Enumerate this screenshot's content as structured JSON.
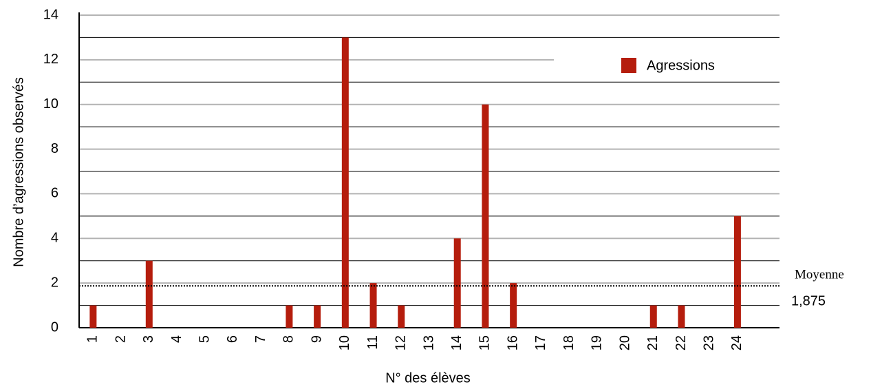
{
  "chart_data": {
    "type": "bar",
    "x_label": "N° des élèves",
    "y_label": "Nombre d’agressions observés",
    "categories": [
      "1",
      "2",
      "3",
      "4",
      "5",
      "6",
      "7",
      "8",
      "9",
      "10",
      "11",
      "12",
      "13",
      "14",
      "15",
      "16",
      "17",
      "18",
      "19",
      "20",
      "21",
      "22",
      "23",
      "24"
    ],
    "series": [
      {
        "name": "Agressions",
        "color": "#b51d0d",
        "values": [
          1,
          0,
          3,
          0,
          0,
          0,
          0,
          1,
          1,
          13,
          2,
          1,
          0,
          4,
          10,
          2,
          0,
          0,
          0,
          0,
          1,
          1,
          0,
          5
        ]
      }
    ],
    "ylim": [
      0,
      14
    ],
    "yticks": [
      0,
      2,
      4,
      6,
      8,
      10,
      12,
      14
    ],
    "minor_yticks": [
      1,
      3,
      5,
      7,
      9,
      11,
      13
    ],
    "grid": true,
    "legend": "top-right",
    "mean": {
      "name": "Moyenne",
      "value": 1.875,
      "label": "1,875"
    }
  }
}
